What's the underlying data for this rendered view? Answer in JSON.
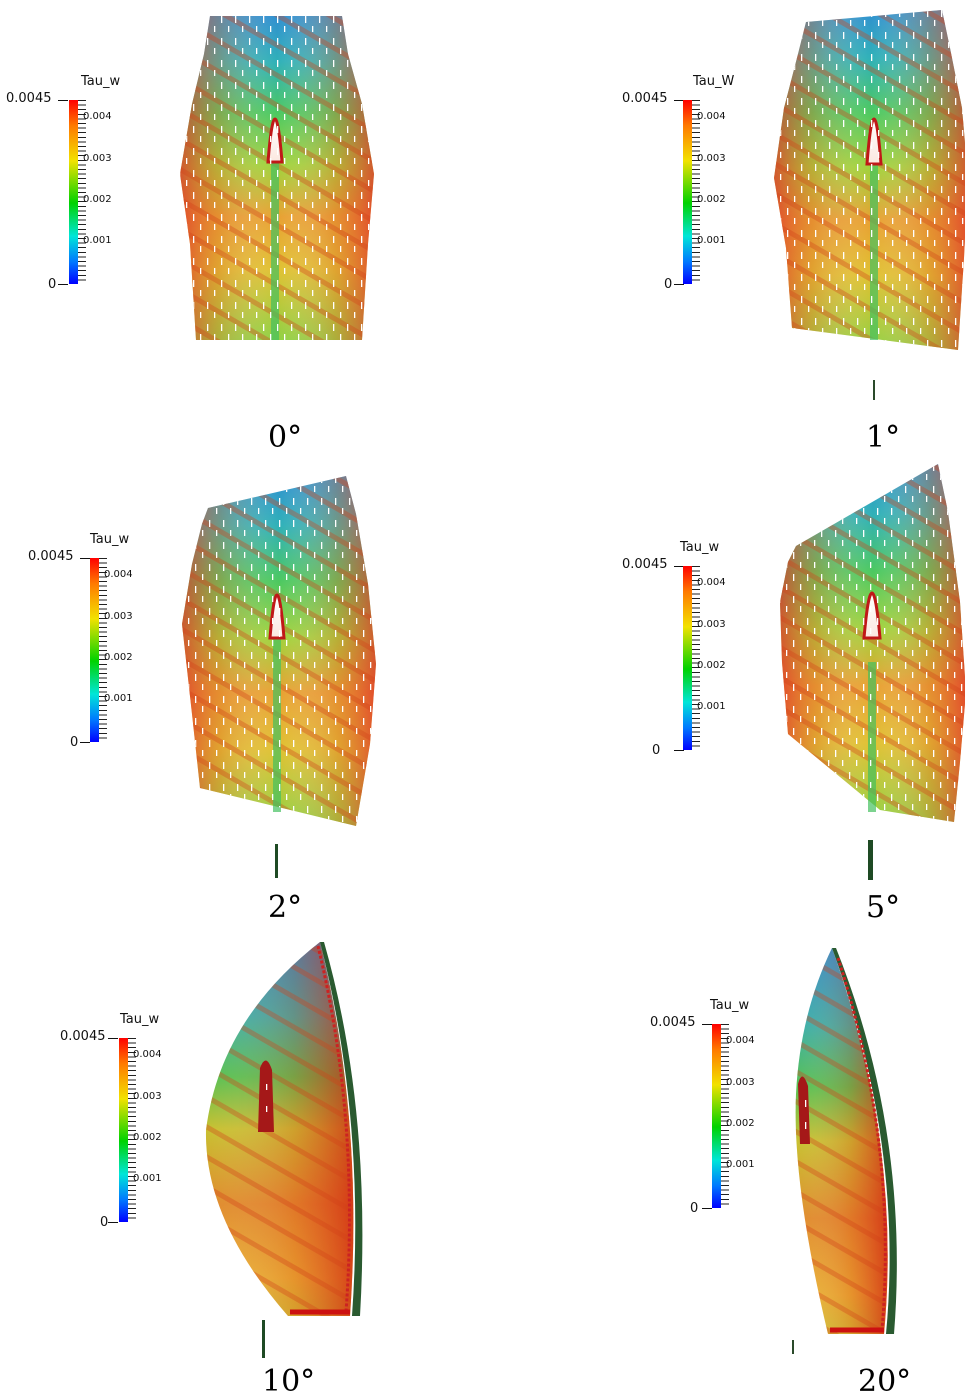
{
  "colorbar": {
    "max_label": "0.0045",
    "min_label": "0",
    "ticks": [
      "0.004",
      "0.003",
      "0.002",
      "0.001"
    ],
    "gradient_colors": [
      "#ff0000",
      "#ff7a00",
      "#f2e200",
      "#00d200",
      "#00e6d8",
      "#0078ff",
      "#0000ff"
    ]
  },
  "panels": [
    {
      "title": "Tau_w",
      "angle": "0°"
    },
    {
      "title": "Tau_W",
      "angle": "1°"
    },
    {
      "title": "Tau_w",
      "angle": "2°"
    },
    {
      "title": "Tau_w",
      "angle": "5°"
    },
    {
      "title": "Tau_w",
      "angle": "10°"
    },
    {
      "title": "Tau_w",
      "angle": "20°"
    }
  ]
}
